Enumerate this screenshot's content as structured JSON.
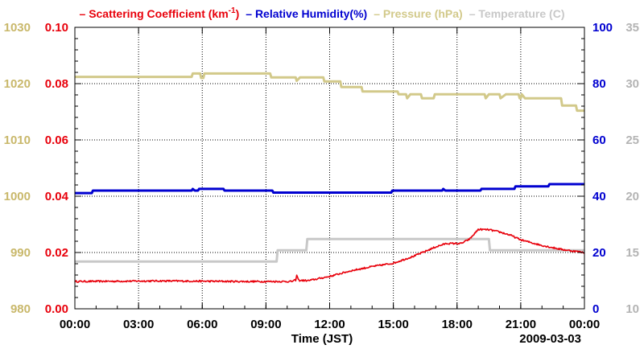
{
  "chart_data": {
    "type": "line",
    "title": "",
    "xlabel": "Time (JST)",
    "date_label": "2009-03-03",
    "grid": true,
    "x_ticks": [
      "00:00",
      "03:00",
      "06:00",
      "09:00",
      "12:00",
      "15:00",
      "18:00",
      "21:00",
      "00:00"
    ],
    "x_range_hours": [
      0,
      24
    ],
    "legend": [
      {
        "name": "Scattering Coefficient (km",
        "sup": "-1",
        "tail": ")",
        "color": "#e8000b"
      },
      {
        "name": "Relative Humidity(%)",
        "color": "#0000d0"
      },
      {
        "name": "Pressure (hPa)",
        "color": "#d2c98a"
      },
      {
        "name": "Temperature (C)",
        "color": "#c8c8c8"
      }
    ],
    "axes": {
      "scattering": {
        "side": "left-inner",
        "range": [
          0,
          0.1
        ],
        "ticks": [
          "0.00",
          "0.02",
          "0.04",
          "0.06",
          "0.08",
          "0.10"
        ],
        "color": "#e8000b"
      },
      "pressure": {
        "side": "left-outer",
        "range": [
          980,
          1030
        ],
        "ticks": [
          "980",
          "990",
          "1000",
          "1010",
          "1020",
          "1030"
        ],
        "color": "#c9b86b"
      },
      "humidity": {
        "side": "right-inner",
        "range": [
          0,
          100
        ],
        "ticks": [
          "0",
          "20",
          "40",
          "60",
          "80",
          "100"
        ],
        "color": "#0000d0"
      },
      "temperature": {
        "side": "right-outer",
        "range": [
          10,
          35
        ],
        "ticks": [
          "10",
          "15",
          "20",
          "25",
          "30",
          "35"
        ],
        "color": "#b4b4b4"
      }
    },
    "series": [
      {
        "name": "Pressure (hPa)",
        "axis": "pressure",
        "color": "#d2c98a",
        "points": [
          [
            0,
            1021.2
          ],
          [
            5.5,
            1021.2
          ],
          [
            5.55,
            1021.8
          ],
          [
            5.9,
            1021.8
          ],
          [
            5.95,
            1021
          ],
          [
            6.05,
            1021
          ],
          [
            6.1,
            1021.8
          ],
          [
            9.2,
            1021.8
          ],
          [
            9.25,
            1021.1
          ],
          [
            10.4,
            1021.1
          ],
          [
            10.45,
            1020.5
          ],
          [
            10.6,
            1021.1
          ],
          [
            11.7,
            1021.1
          ],
          [
            11.75,
            1020.4
          ],
          [
            12.5,
            1020.4
          ],
          [
            12.55,
            1019.4
          ],
          [
            13.5,
            1019.4
          ],
          [
            13.55,
            1018.6
          ],
          [
            15.2,
            1018.6
          ],
          [
            15.25,
            1018.1
          ],
          [
            15.6,
            1018.1
          ],
          [
            15.65,
            1017.4
          ],
          [
            15.8,
            1018.1
          ],
          [
            16.3,
            1018.1
          ],
          [
            16.35,
            1017.4
          ],
          [
            16.9,
            1017.4
          ],
          [
            16.95,
            1018.1
          ],
          [
            19.3,
            1018.1
          ],
          [
            19.35,
            1017.4
          ],
          [
            19.5,
            1018.1
          ],
          [
            20.0,
            1018.1
          ],
          [
            20.05,
            1017.4
          ],
          [
            20.3,
            1018.1
          ],
          [
            20.9,
            1018.1
          ],
          [
            20.95,
            1017.4
          ],
          [
            21.0,
            1017.4
          ],
          [
            21.05,
            1018.1
          ],
          [
            21.2,
            1017.4
          ],
          [
            22.9,
            1017.4
          ],
          [
            22.95,
            1016.1
          ],
          [
            23.6,
            1016.1
          ],
          [
            23.65,
            1015.2
          ],
          [
            24,
            1015.2
          ]
        ]
      },
      {
        "name": "Temperature (C)",
        "axis": "temperature",
        "color": "#c8c8c8",
        "points": [
          [
            0,
            14.2
          ],
          [
            9.5,
            14.2
          ],
          [
            9.55,
            15.2
          ],
          [
            10.9,
            15.2
          ],
          [
            10.95,
            16.2
          ],
          [
            19.5,
            16.2
          ],
          [
            19.55,
            15.2
          ],
          [
            24,
            15.2
          ]
        ]
      },
      {
        "name": "Relative Humidity(%)",
        "axis": "humidity",
        "color": "#0000d0",
        "points": [
          [
            0,
            41.1
          ],
          [
            0.8,
            41.1
          ],
          [
            0.85,
            42
          ],
          [
            5.5,
            42
          ],
          [
            5.55,
            42.6
          ],
          [
            5.65,
            42
          ],
          [
            5.8,
            42
          ],
          [
            5.85,
            42.6
          ],
          [
            7.0,
            42.6
          ],
          [
            7.05,
            42
          ],
          [
            9.3,
            42
          ],
          [
            9.35,
            41.3
          ],
          [
            14.9,
            41.3
          ],
          [
            14.95,
            42
          ],
          [
            17.3,
            42
          ],
          [
            17.35,
            42.6
          ],
          [
            17.45,
            42
          ],
          [
            19.1,
            42
          ],
          [
            19.15,
            42.6
          ],
          [
            20.7,
            42.6
          ],
          [
            20.75,
            43.5
          ],
          [
            22.3,
            43.5
          ],
          [
            22.35,
            44.3
          ],
          [
            24,
            44.3
          ]
        ]
      },
      {
        "name": "Scattering Coefficient",
        "axis": "scattering",
        "color": "#e8000b",
        "noisy": true,
        "points": [
          [
            0,
            0.0097
          ],
          [
            2,
            0.0098
          ],
          [
            4,
            0.0099
          ],
          [
            6,
            0.0098
          ],
          [
            8,
            0.0097
          ],
          [
            10.2,
            0.0097
          ],
          [
            10.4,
            0.0102
          ],
          [
            10.45,
            0.0118
          ],
          [
            10.55,
            0.0101
          ],
          [
            11.0,
            0.01
          ],
          [
            12,
            0.0115
          ],
          [
            13,
            0.0135
          ],
          [
            14,
            0.015
          ],
          [
            15,
            0.0162
          ],
          [
            16,
            0.0188
          ],
          [
            17,
            0.022
          ],
          [
            17.5,
            0.0232
          ],
          [
            18.2,
            0.0232
          ],
          [
            18.6,
            0.0248
          ],
          [
            19.0,
            0.0282
          ],
          [
            19.5,
            0.0281
          ],
          [
            20.0,
            0.0273
          ],
          [
            20.5,
            0.0262
          ],
          [
            21,
            0.0245
          ],
          [
            22,
            0.0225
          ],
          [
            23,
            0.021
          ],
          [
            24,
            0.02
          ]
        ]
      }
    ]
  }
}
